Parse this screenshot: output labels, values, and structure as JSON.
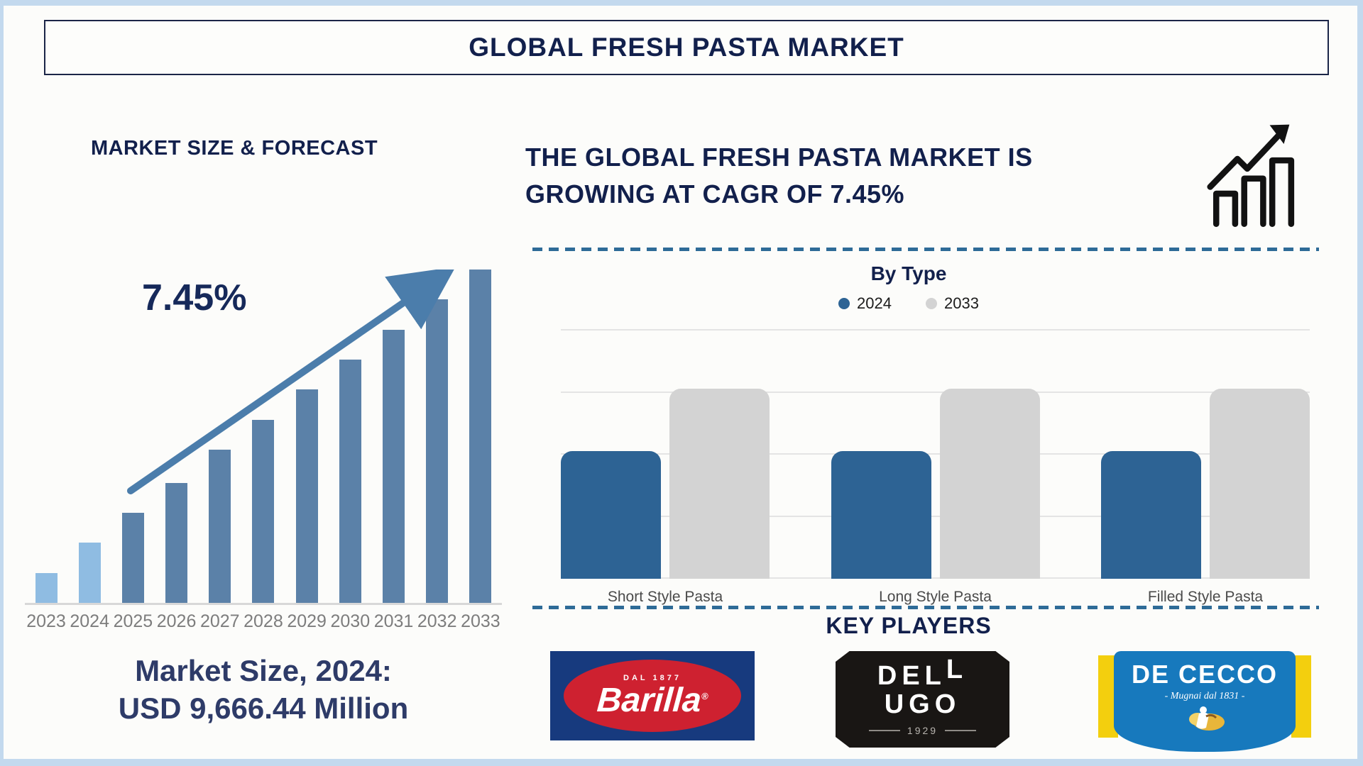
{
  "page": {
    "title": "GLOBAL FRESH PASTA MARKET"
  },
  "colors": {
    "navy_text": "#12204c",
    "steel_blue_bar": "#5b81a8",
    "light_blue_bar": "#8fbce2",
    "trend_arrow": "#4b7dab",
    "bytype_blue": "#2d6394",
    "bytype_gray": "#d3d3d3",
    "dashed_line": "#2e6b97",
    "page_border": "#c3d9ee"
  },
  "left_panel": {
    "heading": "MARKET SIZE & FORECAST",
    "market_size_line1": "Market Size, 2024:",
    "market_size_line2": "USD 9,666.44 Million"
  },
  "right_panel": {
    "headline": [
      "THE GLOBAL FRESH PASTA MARKET IS",
      "GROWING AT CAGR OF 7.45%"
    ],
    "key_players_heading": "KEY PLAYERS",
    "logos": [
      {
        "name": "Barilla",
        "tagline": "DAL 1877",
        "wordmark": "Barilla",
        "reg": "®"
      },
      {
        "name": "Dell'Ugo",
        "line1_a": "DEL",
        "line1_b": "L",
        "line2": "UGO",
        "year": "1929"
      },
      {
        "name": "De Cecco",
        "wordmark": "DE CECCO",
        "tagline": "- Mugnai dal 1831 -"
      }
    ]
  },
  "chart_data": [
    {
      "type": "bar",
      "title": "MARKET SIZE & FORECAST",
      "categories": [
        "2023",
        "2024",
        "2025",
        "2026",
        "2027",
        "2028",
        "2029",
        "2030",
        "2031",
        "2032",
        "2033"
      ],
      "values_pct_of_max": [
        9,
        18,
        27,
        36,
        46,
        55,
        64,
        73,
        82,
        91,
        100
      ],
      "highlight_count": 2,
      "highlight_color": "#8fbce2",
      "bar_color": "#5b81a8",
      "value_axis_labels_shown": false,
      "annotations": {
        "cagr_label": "7.45%",
        "trend_arrow": "up",
        "market_size_caption": "Market Size, 2024: USD 9,666.44 Million"
      }
    },
    {
      "type": "bar",
      "title": "By Type",
      "categories": [
        "Short Style Pasta",
        "Long Style Pasta",
        "Filled Style Pasta"
      ],
      "series": [
        {
          "name": "2024",
          "color": "#2d6394",
          "values_relative": [
            2,
            2,
            2
          ]
        },
        {
          "name": "2033",
          "color": "#d3d3d3",
          "values_relative": [
            3,
            3,
            3
          ]
        }
      ],
      "ylim_relative": [
        0,
        4
      ],
      "grid": true,
      "gridline_count": 5,
      "legend_position": "top",
      "value_axis_labels_shown": false
    }
  ]
}
